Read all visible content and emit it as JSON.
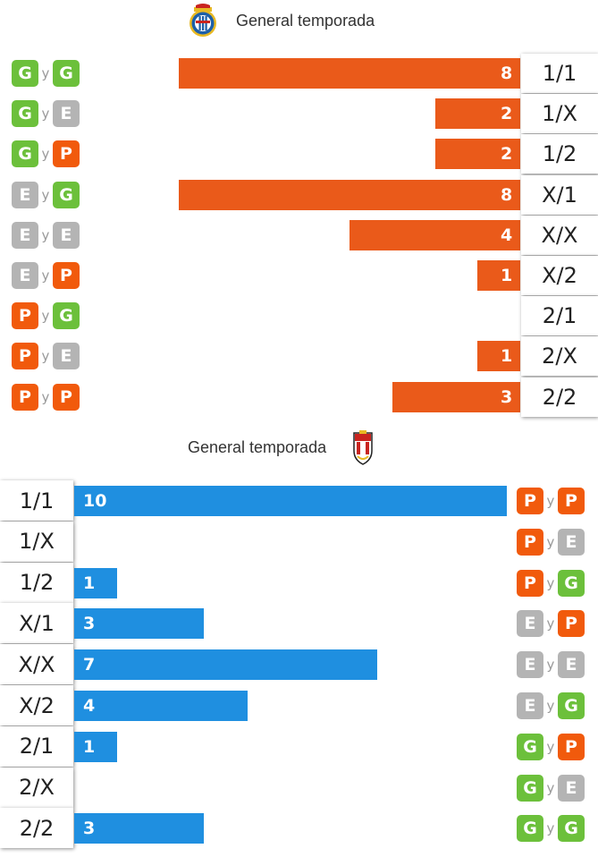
{
  "colors": {
    "top_bar": "#ea5a1a",
    "bottom_bar": "#1f8fe0",
    "G": "#6cc03b",
    "E": "#b4b4b4",
    "P": "#f15a0c"
  },
  "top": {
    "title": "General temporada",
    "logo_icon": "espanyol-crest-icon",
    "connector": "y"
  },
  "bottom": {
    "title": "General temporada",
    "logo_icon": "ud-logrones-crest-icon",
    "connector": "y"
  },
  "chart_data": [
    {
      "type": "bar",
      "orientation": "horizontal",
      "direction": "right-to-left",
      "title": "General temporada",
      "categories": [
        "1/1",
        "1/X",
        "1/2",
        "X/1",
        "X/X",
        "X/2",
        "2/1",
        "2/X",
        "2/2"
      ],
      "badges": [
        [
          "G",
          "G"
        ],
        [
          "G",
          "E"
        ],
        [
          "G",
          "P"
        ],
        [
          "E",
          "G"
        ],
        [
          "E",
          "E"
        ],
        [
          "E",
          "P"
        ],
        [
          "P",
          "G"
        ],
        [
          "P",
          "E"
        ],
        [
          "P",
          "P"
        ]
      ],
      "values": [
        8,
        2,
        2,
        8,
        4,
        1,
        0,
        1,
        3
      ],
      "xlim": [
        0,
        8
      ]
    },
    {
      "type": "bar",
      "orientation": "horizontal",
      "direction": "left-to-right",
      "title": "General temporada",
      "categories": [
        "1/1",
        "1/X",
        "1/2",
        "X/1",
        "X/X",
        "X/2",
        "2/1",
        "2/X",
        "2/2"
      ],
      "badges": [
        [
          "P",
          "P"
        ],
        [
          "P",
          "E"
        ],
        [
          "P",
          "G"
        ],
        [
          "E",
          "P"
        ],
        [
          "E",
          "E"
        ],
        [
          "E",
          "G"
        ],
        [
          "G",
          "P"
        ],
        [
          "G",
          "E"
        ],
        [
          "G",
          "G"
        ]
      ],
      "values": [
        10,
        0,
        1,
        3,
        7,
        4,
        1,
        0,
        3
      ],
      "xlim": [
        0,
        10
      ]
    }
  ]
}
